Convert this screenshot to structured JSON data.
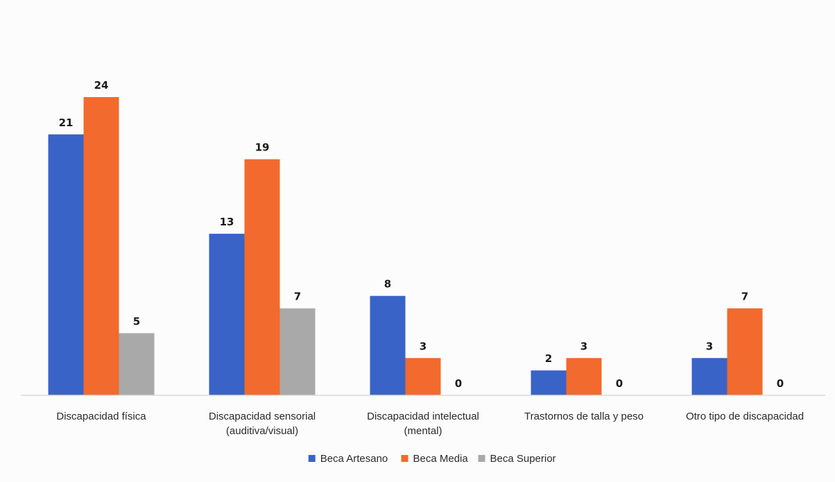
{
  "chart_data": {
    "type": "bar",
    "categories": [
      [
        "Discapacidad física"
      ],
      [
        "Discapacidad sensorial",
        "(auditiva/visual)"
      ],
      [
        "Discapacidad intelectual",
        "(mental)"
      ],
      [
        "Trastornos de talla y peso"
      ],
      [
        "Otro tipo de discapacidad"
      ]
    ],
    "series": [
      {
        "name": "Beca Artesano",
        "color": "#3a63c8",
        "values": [
          21,
          13,
          8,
          2,
          3
        ]
      },
      {
        "name": "Beca Media",
        "color": "#f26a2d",
        "values": [
          24,
          19,
          3,
          3,
          7
        ]
      },
      {
        "name": "Beca Superior",
        "color": "#a9a9a9",
        "values": [
          5,
          7,
          0,
          0,
          0
        ]
      }
    ],
    "ylim": [
      0,
      24
    ],
    "grid": false,
    "legend_position": "bottom",
    "data_labels": true
  }
}
